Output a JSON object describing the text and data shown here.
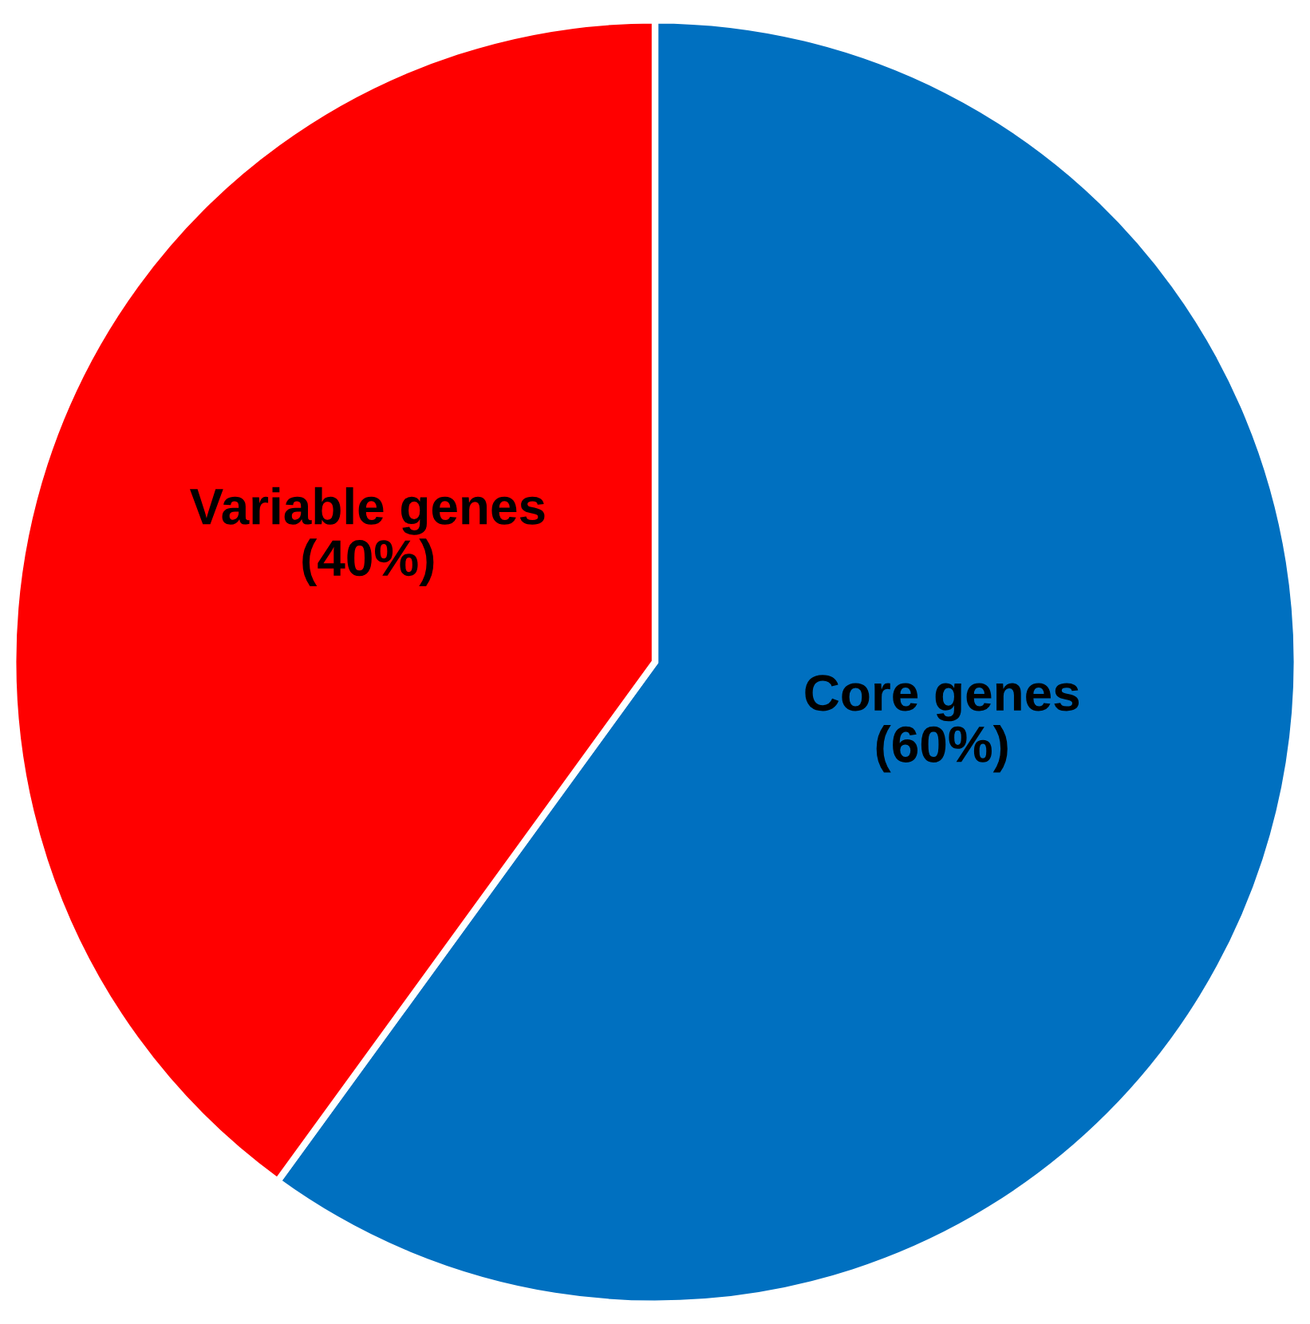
{
  "chart_data": {
    "type": "pie",
    "categories": [
      "Core genes",
      "Variable genes"
    ],
    "values": [
      60,
      40
    ],
    "value_labels": [
      "(60%)",
      "(40%)"
    ],
    "colors": [
      "#0070c0",
      "#ff0000"
    ]
  }
}
